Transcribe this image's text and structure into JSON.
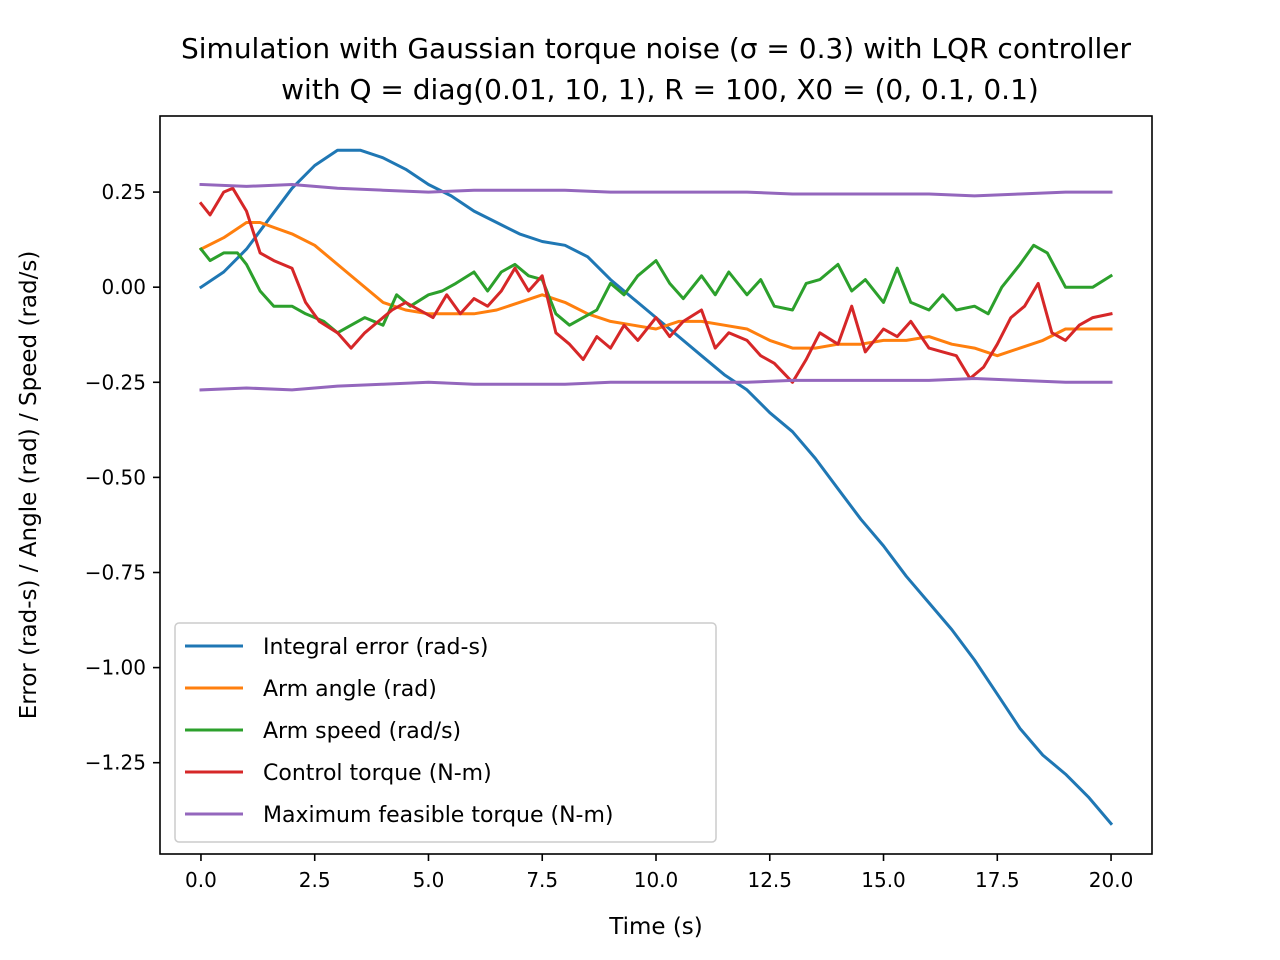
{
  "chart_data": {
    "type": "line",
    "title_line1": "Simulation with Gaussian torque noise (σ = 0.3) with LQR controller",
    "title_line2": "with Q = diag(0.01, 10, 1), R = 100, X0 = (0, 0.1, 0.1)",
    "xlabel": "Time (s)",
    "ylabel": "Error (rad-s) / Angle (rad) / Speed (rad/s)",
    "xlim": [
      -0.9,
      20.9
    ],
    "ylim": [
      -1.49,
      0.45
    ],
    "xticks": [
      0.0,
      2.5,
      5.0,
      7.5,
      10.0,
      12.5,
      15.0,
      17.5,
      20.0
    ],
    "xtick_labels": [
      "0.0",
      "2.5",
      "5.0",
      "7.5",
      "10.0",
      "12.5",
      "15.0",
      "17.5",
      "20.0"
    ],
    "yticks": [
      0.25,
      0.0,
      -0.25,
      -0.5,
      -0.75,
      -1.0,
      -1.25
    ],
    "ytick_labels": [
      "0.25",
      "0.00",
      "−0.25",
      "−0.50",
      "−0.75",
      "−1.00",
      "−1.25"
    ],
    "grid": false,
    "legend_position": "lower-left",
    "series": [
      {
        "name": "Integral error (rad-s)",
        "color": "#1f77b4",
        "points": [
          [
            0,
            0
          ],
          [
            0.5,
            0.04
          ],
          [
            1,
            0.1
          ],
          [
            1.5,
            0.18
          ],
          [
            2,
            0.26
          ],
          [
            2.5,
            0.32
          ],
          [
            3,
            0.36
          ],
          [
            3.5,
            0.36
          ],
          [
            4,
            0.34
          ],
          [
            4.5,
            0.31
          ],
          [
            5,
            0.27
          ],
          [
            5.5,
            0.24
          ],
          [
            6,
            0.2
          ],
          [
            6.5,
            0.17
          ],
          [
            7,
            0.14
          ],
          [
            7.5,
            0.12
          ],
          [
            8,
            0.11
          ],
          [
            8.5,
            0.08
          ],
          [
            9,
            0.02
          ],
          [
            9.5,
            -0.03
          ],
          [
            10,
            -0.08
          ],
          [
            10.5,
            -0.13
          ],
          [
            11,
            -0.18
          ],
          [
            11.5,
            -0.23
          ],
          [
            12,
            -0.27
          ],
          [
            12.5,
            -0.33
          ],
          [
            13,
            -0.38
          ],
          [
            13.5,
            -0.45
          ],
          [
            14,
            -0.53
          ],
          [
            14.5,
            -0.61
          ],
          [
            15,
            -0.68
          ],
          [
            15.5,
            -0.76
          ],
          [
            16,
            -0.83
          ],
          [
            16.5,
            -0.9
          ],
          [
            17,
            -0.98
          ],
          [
            17.5,
            -1.07
          ],
          [
            18,
            -1.16
          ],
          [
            18.5,
            -1.23
          ],
          [
            19,
            -1.28
          ],
          [
            19.5,
            -1.34
          ],
          [
            20,
            -1.41
          ]
        ]
      },
      {
        "name": "Arm angle (rad)",
        "color": "#ff7f0e",
        "points": [
          [
            0,
            0.1
          ],
          [
            0.5,
            0.13
          ],
          [
            1,
            0.17
          ],
          [
            1.3,
            0.17
          ],
          [
            2,
            0.14
          ],
          [
            2.5,
            0.11
          ],
          [
            3,
            0.06
          ],
          [
            3.5,
            0.01
          ],
          [
            4,
            -0.04
          ],
          [
            4.5,
            -0.06
          ],
          [
            5,
            -0.07
          ],
          [
            5.5,
            -0.07
          ],
          [
            6,
            -0.07
          ],
          [
            6.5,
            -0.06
          ],
          [
            7,
            -0.04
          ],
          [
            7.5,
            -0.02
          ],
          [
            8,
            -0.04
          ],
          [
            8.5,
            -0.07
          ],
          [
            9,
            -0.09
          ],
          [
            9.5,
            -0.1
          ],
          [
            10,
            -0.11
          ],
          [
            10.5,
            -0.09
          ],
          [
            11,
            -0.09
          ],
          [
            11.5,
            -0.1
          ],
          [
            12,
            -0.11
          ],
          [
            12.5,
            -0.14
          ],
          [
            13,
            -0.16
          ],
          [
            13.5,
            -0.16
          ],
          [
            14,
            -0.15
          ],
          [
            14.5,
            -0.15
          ],
          [
            15,
            -0.14
          ],
          [
            15.5,
            -0.14
          ],
          [
            16,
            -0.13
          ],
          [
            16.5,
            -0.15
          ],
          [
            17,
            -0.16
          ],
          [
            17.5,
            -0.18
          ],
          [
            18,
            -0.16
          ],
          [
            18.5,
            -0.14
          ],
          [
            19,
            -0.11
          ],
          [
            19.5,
            -0.11
          ],
          [
            20,
            -0.11
          ]
        ]
      },
      {
        "name": "Arm speed (rad/s)",
        "color": "#2ca02c",
        "points": [
          [
            0,
            0.1
          ],
          [
            0.2,
            0.07
          ],
          [
            0.5,
            0.09
          ],
          [
            0.8,
            0.09
          ],
          [
            1,
            0.06
          ],
          [
            1.3,
            -0.01
          ],
          [
            1.6,
            -0.05
          ],
          [
            2,
            -0.05
          ],
          [
            2.3,
            -0.07
          ],
          [
            2.7,
            -0.09
          ],
          [
            3,
            -0.12
          ],
          [
            3.3,
            -0.1
          ],
          [
            3.6,
            -0.08
          ],
          [
            4,
            -0.1
          ],
          [
            4.3,
            -0.02
          ],
          [
            4.6,
            -0.05
          ],
          [
            5,
            -0.02
          ],
          [
            5.3,
            -0.01
          ],
          [
            5.6,
            0.01
          ],
          [
            6,
            0.04
          ],
          [
            6.3,
            -0.01
          ],
          [
            6.6,
            0.04
          ],
          [
            6.9,
            0.06
          ],
          [
            7.2,
            0.03
          ],
          [
            7.5,
            0.02
          ],
          [
            7.8,
            -0.07
          ],
          [
            8.1,
            -0.1
          ],
          [
            8.4,
            -0.08
          ],
          [
            8.7,
            -0.06
          ],
          [
            9,
            0.01
          ],
          [
            9.3,
            -0.02
          ],
          [
            9.6,
            0.03
          ],
          [
            10,
            0.07
          ],
          [
            10.3,
            0.01
          ],
          [
            10.6,
            -0.03
          ],
          [
            11,
            0.03
          ],
          [
            11.3,
            -0.02
          ],
          [
            11.6,
            0.04
          ],
          [
            12,
            -0.02
          ],
          [
            12.3,
            0.02
          ],
          [
            12.6,
            -0.05
          ],
          [
            13,
            -0.06
          ],
          [
            13.3,
            0.01
          ],
          [
            13.6,
            0.02
          ],
          [
            14,
            0.06
          ],
          [
            14.3,
            -0.01
          ],
          [
            14.6,
            0.02
          ],
          [
            15,
            -0.04
          ],
          [
            15.3,
            0.05
          ],
          [
            15.6,
            -0.04
          ],
          [
            16,
            -0.06
          ],
          [
            16.3,
            -0.02
          ],
          [
            16.6,
            -0.06
          ],
          [
            17,
            -0.05
          ],
          [
            17.3,
            -0.07
          ],
          [
            17.6,
            0.0
          ],
          [
            18,
            0.06
          ],
          [
            18.3,
            0.11
          ],
          [
            18.6,
            0.09
          ],
          [
            19,
            0.0
          ],
          [
            19.3,
            0.0
          ],
          [
            19.6,
            0.0
          ],
          [
            20,
            0.03
          ]
        ]
      },
      {
        "name": "Control torque (N-m)",
        "color": "#d62728",
        "points": [
          [
            0,
            0.22
          ],
          [
            0.2,
            0.19
          ],
          [
            0.5,
            0.25
          ],
          [
            0.7,
            0.26
          ],
          [
            1,
            0.2
          ],
          [
            1.3,
            0.09
          ],
          [
            1.6,
            0.07
          ],
          [
            2,
            0.05
          ],
          [
            2.3,
            -0.04
          ],
          [
            2.6,
            -0.09
          ],
          [
            3,
            -0.12
          ],
          [
            3.3,
            -0.16
          ],
          [
            3.6,
            -0.12
          ],
          [
            3.9,
            -0.09
          ],
          [
            4.2,
            -0.06
          ],
          [
            4.5,
            -0.04
          ],
          [
            4.8,
            -0.06
          ],
          [
            5.1,
            -0.08
          ],
          [
            5.4,
            -0.02
          ],
          [
            5.7,
            -0.07
          ],
          [
            6,
            -0.03
          ],
          [
            6.3,
            -0.05
          ],
          [
            6.6,
            -0.01
          ],
          [
            6.9,
            0.05
          ],
          [
            7.2,
            -0.01
          ],
          [
            7.5,
            0.03
          ],
          [
            7.8,
            -0.12
          ],
          [
            8.1,
            -0.15
          ],
          [
            8.4,
            -0.19
          ],
          [
            8.7,
            -0.13
          ],
          [
            9,
            -0.16
          ],
          [
            9.3,
            -0.1
          ],
          [
            9.6,
            -0.14
          ],
          [
            10,
            -0.08
          ],
          [
            10.3,
            -0.13
          ],
          [
            10.6,
            -0.09
          ],
          [
            11,
            -0.06
          ],
          [
            11.3,
            -0.16
          ],
          [
            11.6,
            -0.12
          ],
          [
            12,
            -0.14
          ],
          [
            12.3,
            -0.18
          ],
          [
            12.6,
            -0.2
          ],
          [
            13,
            -0.25
          ],
          [
            13.3,
            -0.19
          ],
          [
            13.6,
            -0.12
          ],
          [
            14,
            -0.15
          ],
          [
            14.3,
            -0.05
          ],
          [
            14.6,
            -0.17
          ],
          [
            15,
            -0.11
          ],
          [
            15.3,
            -0.13
          ],
          [
            15.6,
            -0.09
          ],
          [
            16,
            -0.16
          ],
          [
            16.3,
            -0.17
          ],
          [
            16.6,
            -0.18
          ],
          [
            16.9,
            -0.24
          ],
          [
            17.2,
            -0.21
          ],
          [
            17.5,
            -0.15
          ],
          [
            17.8,
            -0.08
          ],
          [
            18.1,
            -0.05
          ],
          [
            18.4,
            0.01
          ],
          [
            18.7,
            -0.12
          ],
          [
            19,
            -0.14
          ],
          [
            19.3,
            -0.1
          ],
          [
            19.6,
            -0.08
          ],
          [
            20,
            -0.07
          ]
        ]
      },
      {
        "name": "Maximum feasible torque (N-m)",
        "color": "#9467bd",
        "points": [
          [
            0,
            0.27
          ],
          [
            1,
            0.265
          ],
          [
            2,
            0.27
          ],
          [
            3,
            0.26
          ],
          [
            4,
            0.255
          ],
          [
            5,
            0.25
          ],
          [
            6,
            0.255
          ],
          [
            7,
            0.255
          ],
          [
            8,
            0.255
          ],
          [
            9,
            0.25
          ],
          [
            10,
            0.25
          ],
          [
            11,
            0.25
          ],
          [
            12,
            0.25
          ],
          [
            13,
            0.245
          ],
          [
            14,
            0.245
          ],
          [
            15,
            0.245
          ],
          [
            16,
            0.245
          ],
          [
            17,
            0.24
          ],
          [
            18,
            0.245
          ],
          [
            19,
            0.25
          ],
          [
            20,
            0.25
          ]
        ]
      },
      {
        "name": "",
        "color": "#9467bd",
        "points": [
          [
            0,
            -0.27
          ],
          [
            1,
            -0.265
          ],
          [
            2,
            -0.27
          ],
          [
            3,
            -0.26
          ],
          [
            4,
            -0.255
          ],
          [
            5,
            -0.25
          ],
          [
            6,
            -0.255
          ],
          [
            7,
            -0.255
          ],
          [
            8,
            -0.255
          ],
          [
            9,
            -0.25
          ],
          [
            10,
            -0.25
          ],
          [
            11,
            -0.25
          ],
          [
            12,
            -0.25
          ],
          [
            13,
            -0.245
          ],
          [
            14,
            -0.245
          ],
          [
            15,
            -0.245
          ],
          [
            16,
            -0.245
          ],
          [
            17,
            -0.24
          ],
          [
            18,
            -0.245
          ],
          [
            19,
            -0.25
          ],
          [
            20,
            -0.25
          ]
        ]
      }
    ]
  }
}
